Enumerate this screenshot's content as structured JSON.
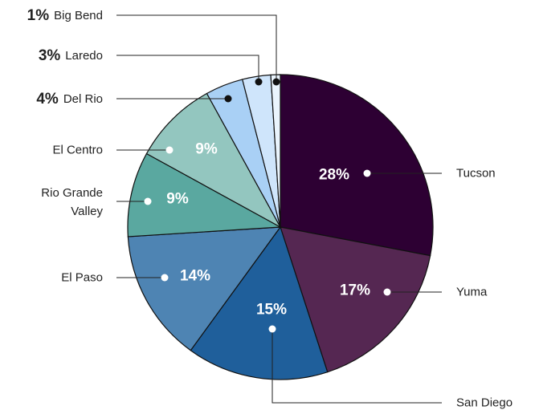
{
  "chart_data": {
    "type": "pie",
    "start_angle_deg": 0,
    "direction": "clockwise",
    "slices": [
      {
        "label": "Tucson",
        "value": 28,
        "pct_label": "28%",
        "color": "#2d0033",
        "pct_color": "#ffffff"
      },
      {
        "label": "Yuma",
        "value": 17,
        "pct_label": "17%",
        "color": "#552752",
        "pct_color": "#ffffff"
      },
      {
        "label": "San Diego",
        "value": 15,
        "pct_label": "15%",
        "color": "#1f5f9b",
        "pct_color": "#ffffff"
      },
      {
        "label": "El Paso",
        "value": 14,
        "pct_label": "14%",
        "color": "#4e84b3",
        "pct_color": "#ffffff"
      },
      {
        "label": "Rio Grande Valley",
        "label_lines": [
          "Rio Grande",
          "Valley"
        ],
        "value": 9,
        "pct_label": "9%",
        "color": "#5aa8a0",
        "pct_color": "#ffffff"
      },
      {
        "label": "El Centro",
        "value": 9,
        "pct_label": "9%",
        "color": "#93c6bf",
        "pct_color": "#ffffff"
      },
      {
        "label": "Del Rio",
        "value": 4,
        "pct_label": "4%",
        "color": "#a9d0f5",
        "pct_color": "#222222"
      },
      {
        "label": "Laredo",
        "value": 3,
        "pct_label": "3%",
        "color": "#cfe5fb",
        "pct_color": "#222222"
      },
      {
        "label": "Big Bend",
        "value": 1,
        "pct_label": "1%",
        "color": "#eaf4fd",
        "pct_color": "#222222"
      }
    ]
  }
}
